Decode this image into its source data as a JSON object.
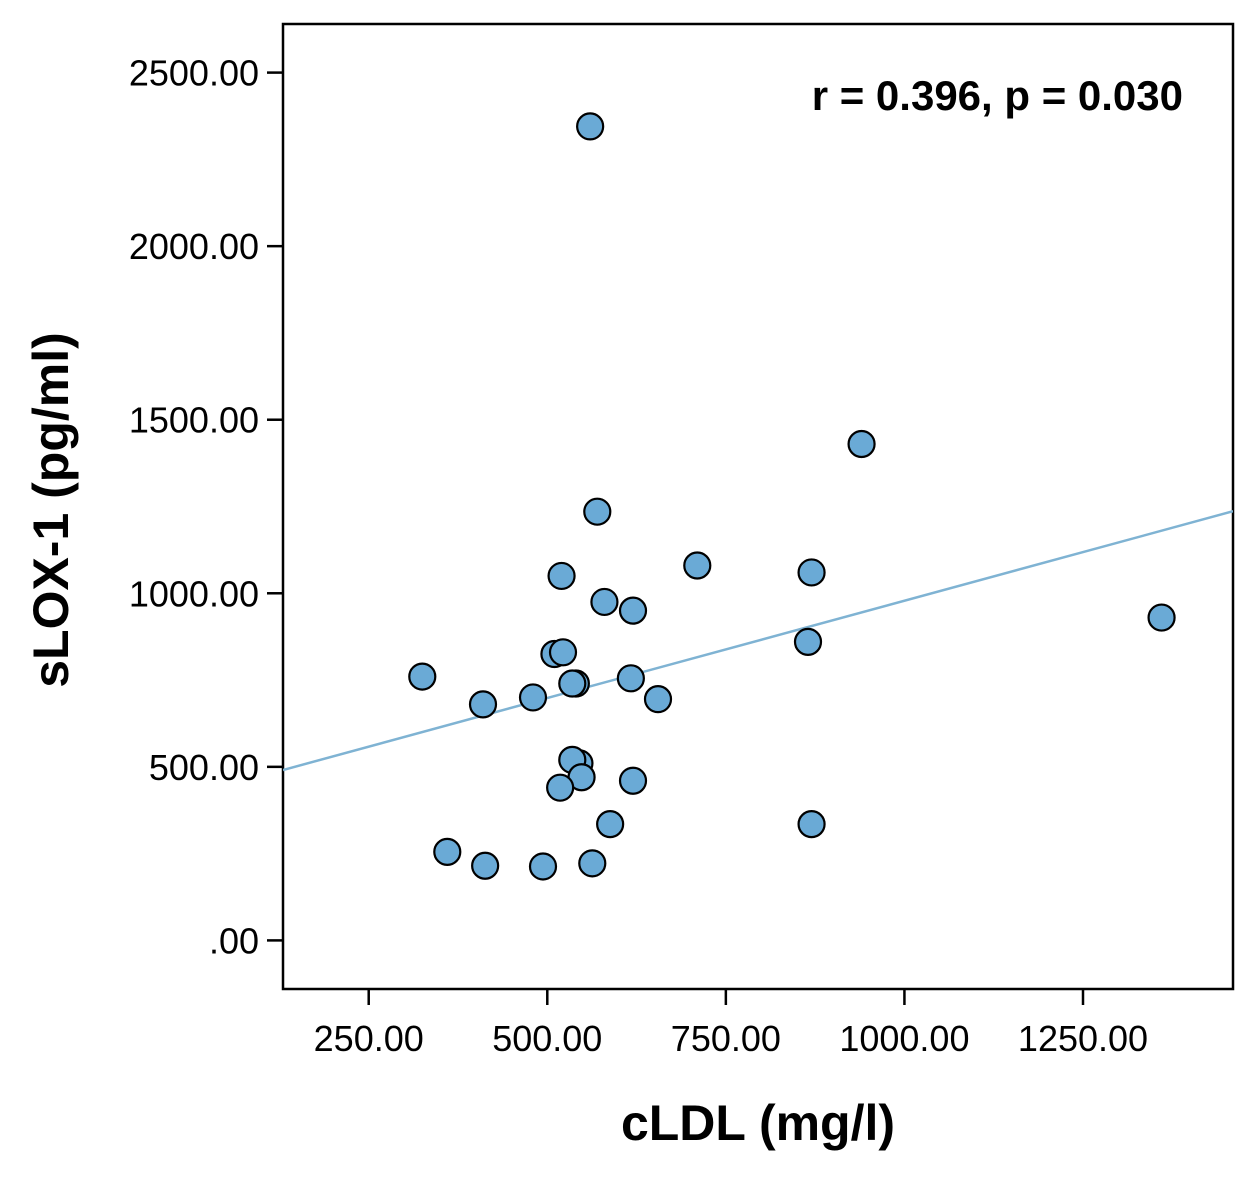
{
  "chart_data": {
    "type": "scatter",
    "title": "",
    "xlabel": "cLDL (mg/l)",
    "ylabel": "sLOX-1 (pg/ml)",
    "annotation": "r = 0.396, p = 0.030",
    "xlim": [
      130,
      1460
    ],
    "ylim": [
      -140,
      2640
    ],
    "x_ticks": [
      250,
      500,
      750,
      1000,
      1250
    ],
    "x_tick_labels": [
      "250.00",
      "500.00",
      "750.00",
      "1000.00",
      "1250.00"
    ],
    "y_ticks": [
      0,
      500,
      1000,
      1500,
      2000,
      2500
    ],
    "y_tick_labels": [
      ".00",
      "500.00",
      "1000.00",
      "1500.00",
      "2000.00",
      "2500.00"
    ],
    "grid": false,
    "marker_color": "#6aaad6",
    "line_color": "#7fb3d3",
    "fit_line": {
      "slope": 0.5605,
      "intercept": 418
    },
    "points": [
      {
        "x": 560,
        "y": 2345
      },
      {
        "x": 940,
        "y": 1430
      },
      {
        "x": 570,
        "y": 1235
      },
      {
        "x": 710,
        "y": 1080
      },
      {
        "x": 870,
        "y": 1060
      },
      {
        "x": 520,
        "y": 1050
      },
      {
        "x": 580,
        "y": 975
      },
      {
        "x": 620,
        "y": 950
      },
      {
        "x": 1360,
        "y": 930
      },
      {
        "x": 865,
        "y": 860
      },
      {
        "x": 510,
        "y": 825
      },
      {
        "x": 522,
        "y": 830
      },
      {
        "x": 325,
        "y": 760
      },
      {
        "x": 617,
        "y": 755
      },
      {
        "x": 540,
        "y": 740
      },
      {
        "x": 535,
        "y": 740
      },
      {
        "x": 655,
        "y": 695
      },
      {
        "x": 480,
        "y": 700
      },
      {
        "x": 410,
        "y": 680
      },
      {
        "x": 545,
        "y": 510
      },
      {
        "x": 535,
        "y": 520
      },
      {
        "x": 548,
        "y": 470
      },
      {
        "x": 518,
        "y": 440
      },
      {
        "x": 620,
        "y": 460
      },
      {
        "x": 588,
        "y": 335
      },
      {
        "x": 870,
        "y": 335
      },
      {
        "x": 360,
        "y": 255
      },
      {
        "x": 413,
        "y": 215
      },
      {
        "x": 494,
        "y": 213
      },
      {
        "x": 563,
        "y": 222
      }
    ]
  }
}
